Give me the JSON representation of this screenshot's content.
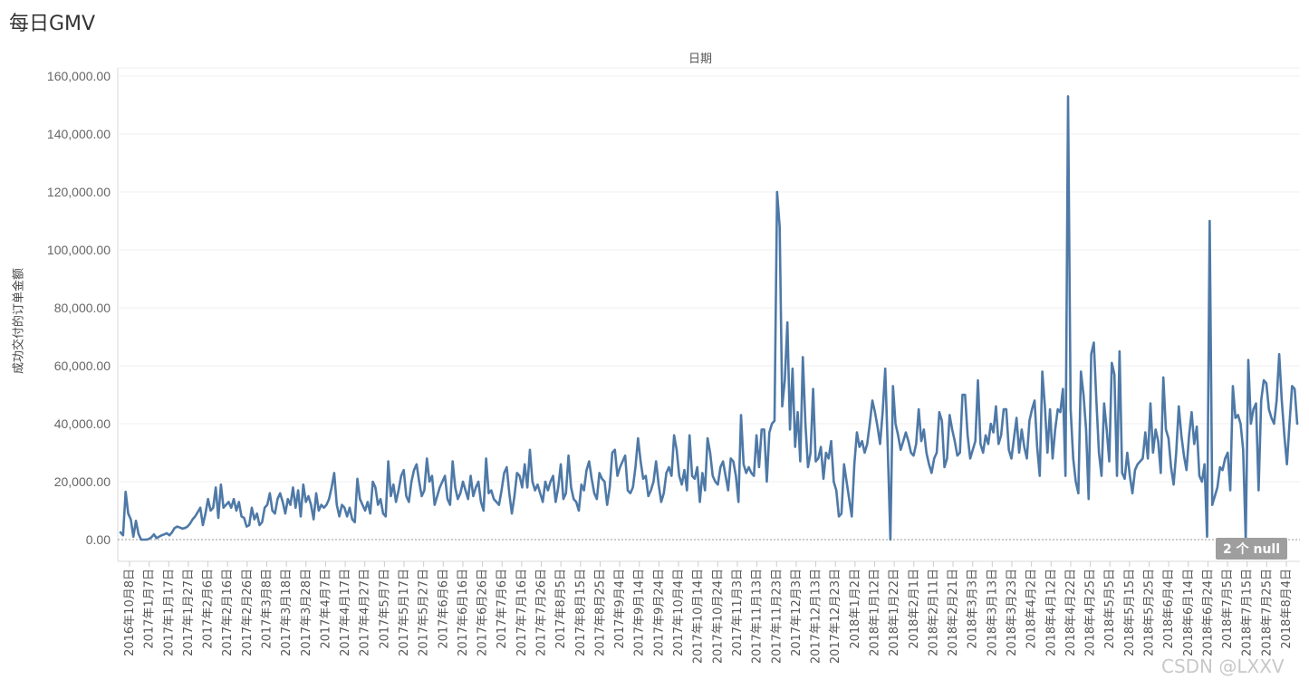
{
  "page": {
    "title": "每日GMV"
  },
  "badge": {
    "text": "2 个 null"
  },
  "watermark": {
    "text": "CSDN @LXXV"
  },
  "chart_data": {
    "type": "line",
    "title": "每日GMV",
    "header": "日期",
    "ylabel": "成功交付的订单金额",
    "ylim": [
      -5000,
      160000
    ],
    "yticks": [
      0,
      20000,
      40000,
      60000,
      80000,
      100000,
      120000,
      140000,
      160000
    ],
    "ytick_labels": [
      "0.00",
      "20,000.00",
      "40,000.00",
      "60,000.00",
      "80,000.00",
      "100,000.00",
      "120,000.00",
      "140,000.00",
      "160,000.00"
    ],
    "xtick_labels": [
      "2016年10月8日",
      "2017年1月7日",
      "2017年1月17日",
      "2017年1月27日",
      "2017年2月6日",
      "2017年2月16日",
      "2017年2月26日",
      "2017年3月8日",
      "2017年3月18日",
      "2017年3月28日",
      "2017年4月7日",
      "2017年4月17日",
      "2017年4月27日",
      "2017年5月7日",
      "2017年5月17日",
      "2017年5月27日",
      "2017年6月6日",
      "2017年6月16日",
      "2017年6月26日",
      "2017年7月6日",
      "2017年7月16日",
      "2017年7月26日",
      "2017年8月5日",
      "2017年8月15日",
      "2017年8月25日",
      "2017年9月4日",
      "2017年9月14日",
      "2017年9月24日",
      "2017年10月4日",
      "2017年10月14日",
      "2017年10月24日",
      "2017年11月3日",
      "2017年11月13日",
      "2017年11月23日",
      "2017年12月3日",
      "2017年12月13日",
      "2017年12月23日",
      "2018年1月2日",
      "2018年1月12日",
      "2018年1月22日",
      "2018年2月1日",
      "2018年2月11日",
      "2018年2月21日",
      "2018年3月3日",
      "2018年3月13日",
      "2018年3月23日",
      "2018年4月2日",
      "2018年4月12日",
      "2018年4月22日",
      "2018年4月25日",
      "2018年5月5日",
      "2018年5月15日",
      "2018年5月25日",
      "2018年6月4日",
      "2018年6月14日",
      "2018年6月24日",
      "2018年7月5日",
      "2018年7月15日",
      "2018年7月25日",
      "2018年8月4日"
    ],
    "series": [
      {
        "color": "#4e79a7",
        "values": [
          2500,
          1500,
          16500,
          9000,
          7000,
          1000,
          6500,
          2000,
          0,
          0,
          0,
          200,
          800,
          1800,
          500,
          1000,
          1500,
          1800,
          2200,
          1500,
          2500,
          4000,
          4500,
          4200,
          3800,
          4000,
          4500,
          5500,
          7000,
          8000,
          9500,
          11000,
          5000,
          9000,
          14000,
          10000,
          11000,
          18000,
          7500,
          19000,
          11000,
          12000,
          13000,
          11000,
          14000,
          10000,
          13000,
          8000,
          7500,
          4500,
          5000,
          11000,
          7000,
          9000,
          5000,
          6000,
          11000,
          12000,
          16000,
          10000,
          9000,
          14000,
          16000,
          13000,
          9000,
          14000,
          12000,
          18000,
          11000,
          17000,
          8000,
          19000,
          13000,
          15000,
          12000,
          7000,
          16000,
          10000,
          12000,
          11000,
          12000,
          14000,
          18000,
          23000,
          12000,
          8000,
          12000,
          11000,
          8000,
          11000,
          7000,
          6000,
          21000,
          14000,
          12000,
          10000,
          13000,
          9000,
          20000,
          18000,
          12000,
          14000,
          9000,
          8000,
          27000,
          15000,
          19000,
          13000,
          17000,
          22000,
          24000,
          15000,
          13000,
          20000,
          24000,
          26000,
          20000,
          15000,
          17000,
          28000,
          20000,
          22000,
          12000,
          15000,
          18000,
          20000,
          22000,
          14000,
          12000,
          27000,
          18000,
          14000,
          16000,
          20000,
          17000,
          14000,
          22000,
          15000,
          18000,
          20000,
          13000,
          10000,
          28000,
          16000,
          17000,
          14000,
          13000,
          12000,
          17000,
          23000,
          25000,
          16000,
          9000,
          15000,
          23000,
          22000,
          18000,
          26000,
          18000,
          31000,
          20000,
          17000,
          19000,
          16000,
          13000,
          20000,
          17000,
          20000,
          22000,
          13000,
          18000,
          26000,
          14000,
          16000,
          29000,
          18000,
          14000,
          13000,
          10000,
          19000,
          17000,
          24000,
          27000,
          21000,
          16000,
          14000,
          23000,
          21000,
          20000,
          12000,
          18000,
          30000,
          31000,
          22000,
          25000,
          27000,
          29000,
          17000,
          16000,
          18000,
          25000,
          35000,
          27000,
          21000,
          22000,
          15000,
          17000,
          20000,
          27000,
          19000,
          13000,
          16000,
          23000,
          25000,
          22000,
          36000,
          31000,
          22000,
          19000,
          24000,
          17000,
          36000,
          22000,
          21000,
          25000,
          13000,
          23000,
          17000,
          35000,
          30000,
          22000,
          20000,
          19000,
          25000,
          27000,
          22000,
          17000,
          28000,
          27000,
          22000,
          13000,
          43000,
          26000,
          23000,
          25000,
          23000,
          22000,
          36000,
          25000,
          38000,
          38000,
          20000,
          37000,
          40000,
          41000,
          120000,
          108000,
          46000,
          55000,
          75000,
          38000,
          59000,
          32000,
          44000,
          27000,
          63000,
          40000,
          25000,
          30000,
          52000,
          27000,
          28000,
          32000,
          21000,
          30000,
          28000,
          34000,
          20000,
          17000,
          8000,
          9000,
          26000,
          20000,
          14000,
          8000,
          26000,
          37000,
          32000,
          34000,
          30000,
          33000,
          40000,
          48000,
          44000,
          39000,
          33000,
          44000,
          59000,
          31000,
          0,
          53000,
          40000,
          36000,
          31000,
          34000,
          37000,
          34000,
          30000,
          29000,
          33000,
          45000,
          34000,
          38000,
          30000,
          26000,
          23000,
          28000,
          30000,
          44000,
          41000,
          25000,
          28000,
          43000,
          38000,
          34000,
          29000,
          30000,
          50000,
          50000,
          36000,
          28000,
          31000,
          34000,
          55000,
          33000,
          30000,
          36000,
          33000,
          40000,
          37000,
          46000,
          33000,
          36000,
          45000,
          45000,
          31000,
          28000,
          35000,
          42000,
          30000,
          38000,
          32000,
          28000,
          41000,
          45000,
          48000,
          32000,
          22000,
          58000,
          46000,
          30000,
          45000,
          28000,
          38000,
          45000,
          44000,
          52000,
          22000,
          153000,
          45000,
          28000,
          20000,
          16000,
          58000,
          50000,
          38000,
          14000,
          64000,
          68000,
          48000,
          30000,
          22000,
          47000,
          38000,
          27000,
          61000,
          57000,
          22000,
          65000,
          23000,
          21000,
          30000,
          22000,
          16000,
          24000,
          26000,
          27000,
          28000,
          37000,
          28000,
          47000,
          30000,
          38000,
          34000,
          23000,
          56000,
          38000,
          35000,
          25000,
          19000,
          30000,
          46000,
          36000,
          29000,
          24000,
          36000,
          44000,
          33000,
          39000,
          22000,
          20000,
          26000,
          1000,
          110000,
          12000,
          15000,
          18000,
          25000,
          24000,
          28000,
          30000,
          17000,
          53000,
          42000,
          43000,
          40000,
          31000,
          0,
          62000,
          40000,
          45000,
          47000,
          17000,
          48000,
          55000,
          54000,
          45000,
          42000,
          40000,
          48000,
          64000,
          48000,
          36000,
          26000,
          40000,
          53000,
          52000,
          40000
        ]
      }
    ]
  }
}
